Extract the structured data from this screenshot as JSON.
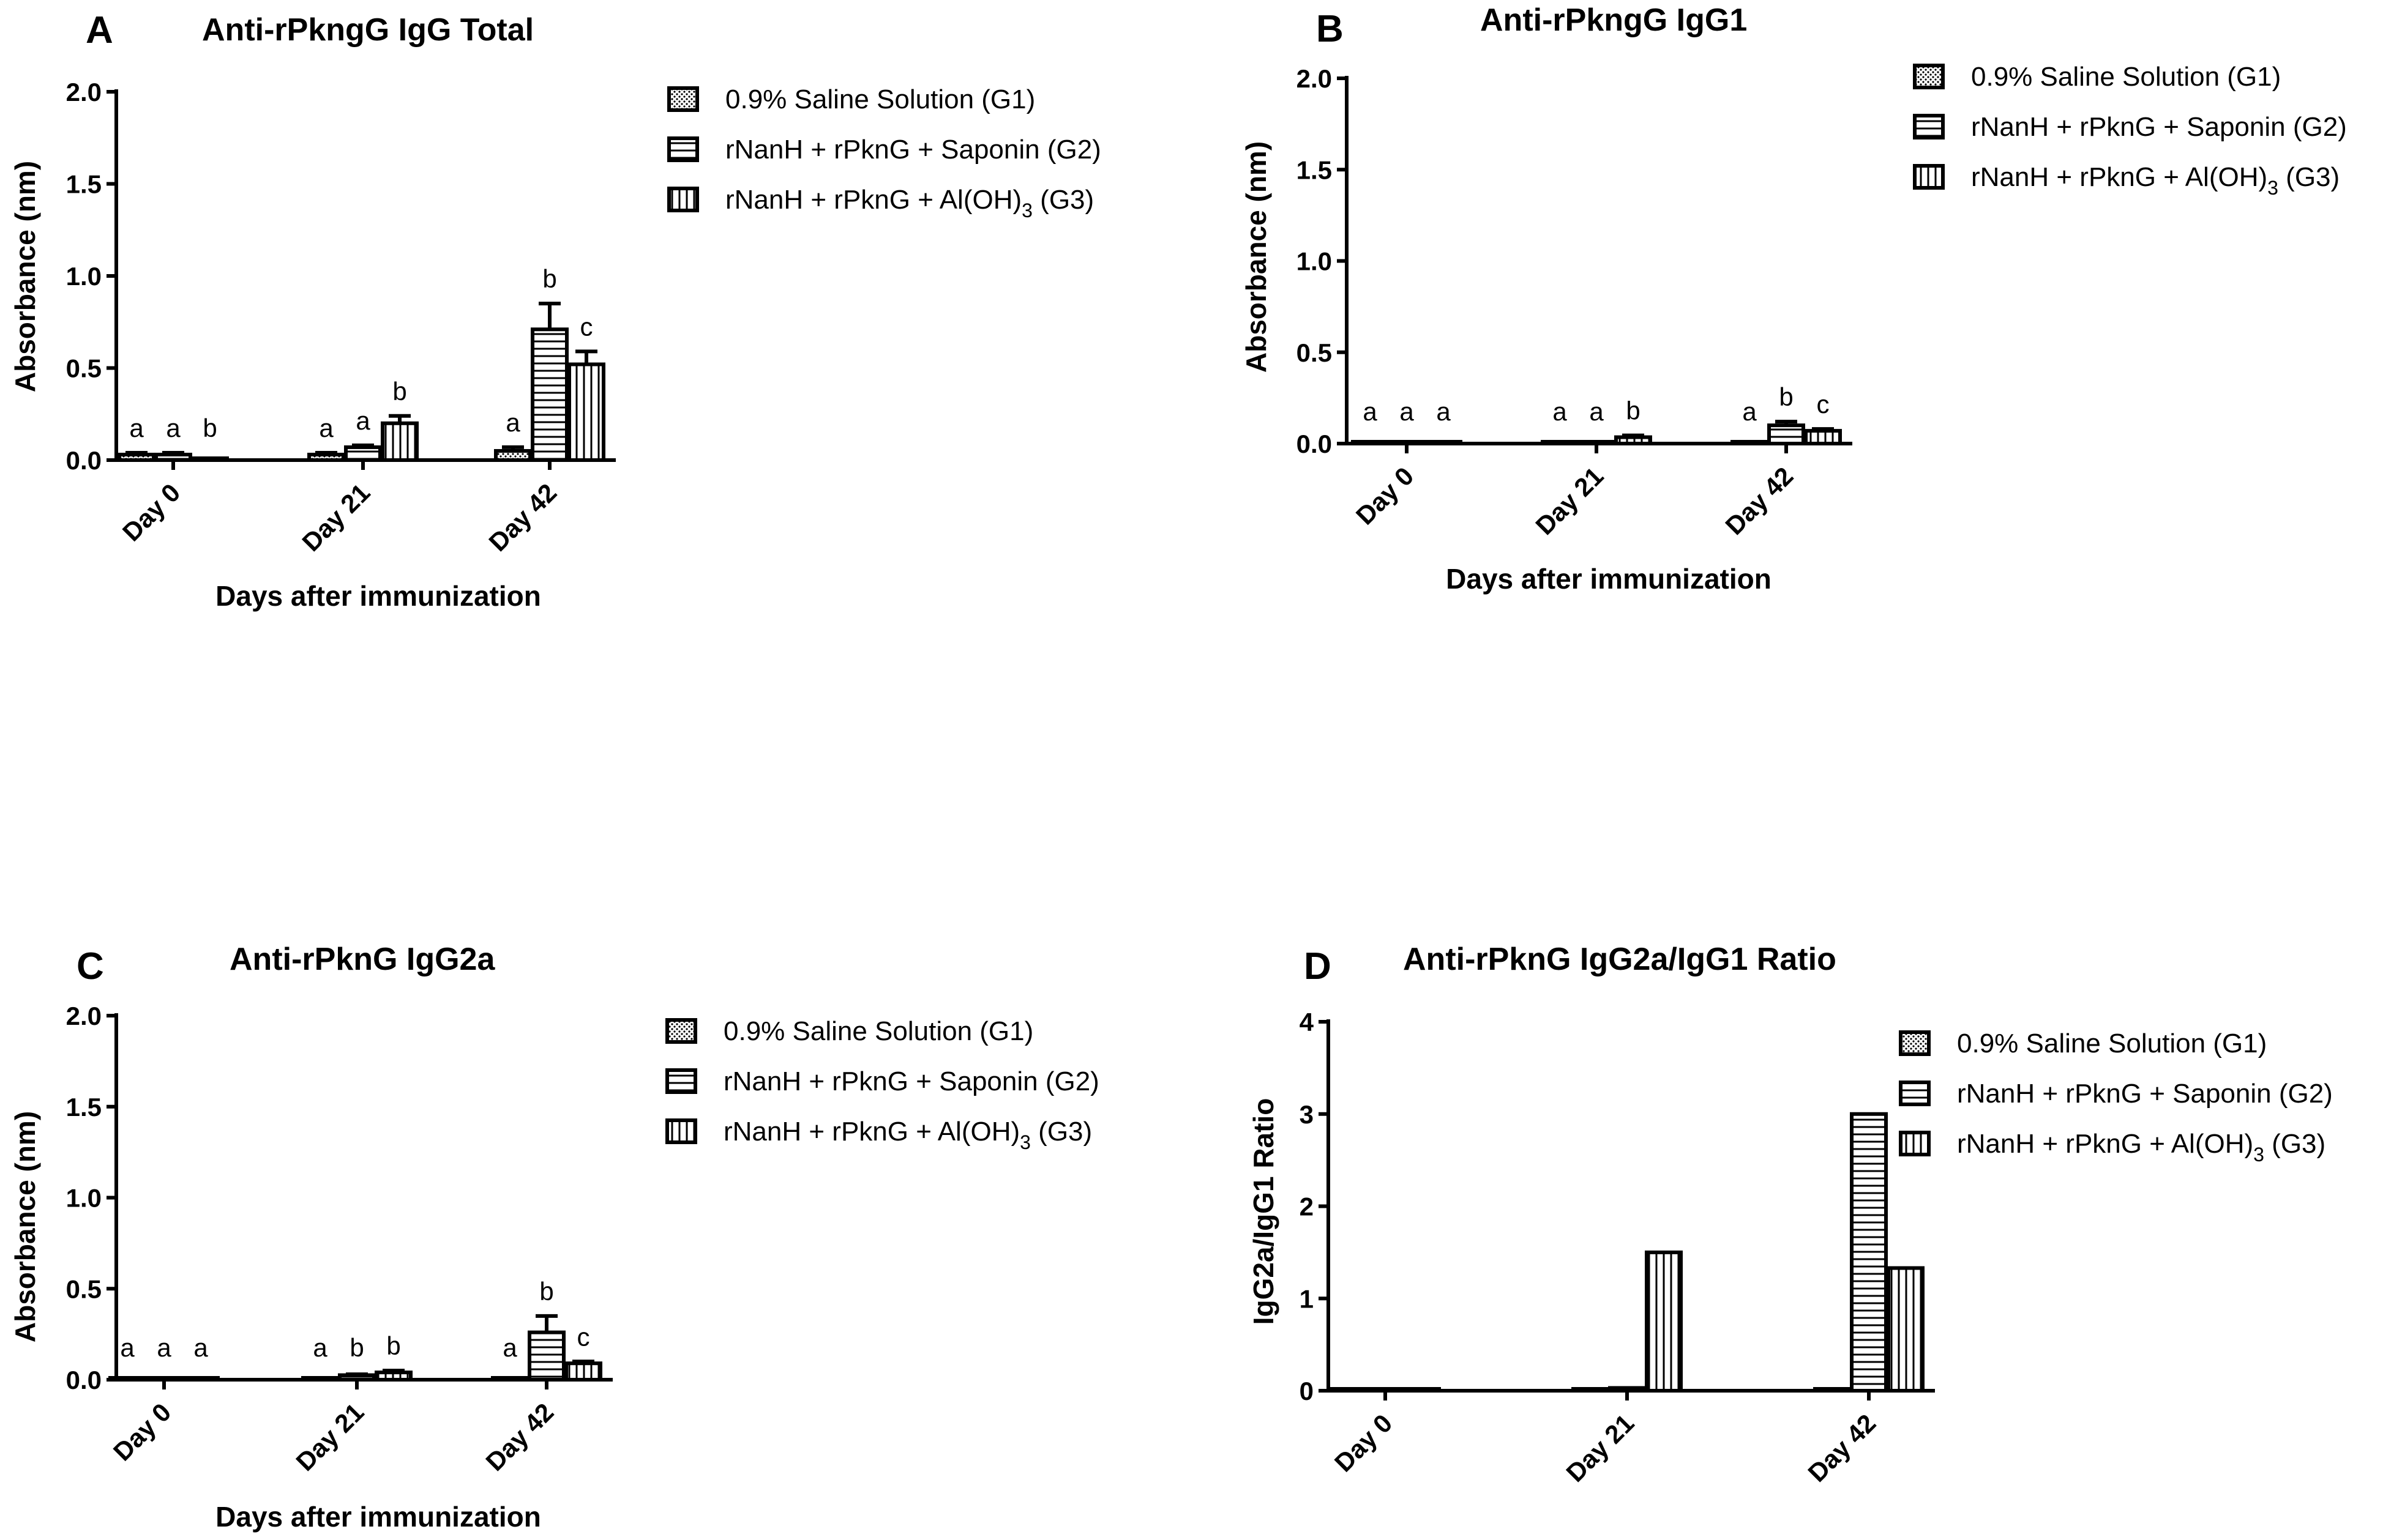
{
  "chart_data": [
    {
      "id": "A",
      "type": "bar",
      "panel_label": "A",
      "title": "Anti-rPkngG IgG Total",
      "xlabel": "Days after immunization",
      "ylabel": "Absorbance (nm)",
      "ylim": [
        0,
        2.0
      ],
      "yticks": [
        "0.0",
        "0.5",
        "1.0",
        "1.5",
        "2.0"
      ],
      "ytick_values": [
        0,
        0.5,
        1.0,
        1.5,
        2.0
      ],
      "categories": [
        "Day 0",
        "Day 21",
        "Day 42"
      ],
      "series": [
        {
          "name": "0.9% Saline Solution (G1)",
          "pattern": "dots",
          "values": [
            0.03,
            0.03,
            0.05
          ],
          "errors": [
            0.01,
            0.01,
            0.02
          ],
          "letters": [
            "a",
            "a",
            "a"
          ]
        },
        {
          "name": "rNanH + rPknG + Saponin (G2)",
          "pattern": "hlines",
          "values": [
            0.03,
            0.07,
            0.71
          ],
          "errors": [
            0.01,
            0.01,
            0.14
          ],
          "letters": [
            "a",
            "a",
            "b"
          ]
        },
        {
          "name": "rNanH + rPknG + Al(OH)3 (G3)",
          "pattern": "vlines",
          "values": [
            0.01,
            0.2,
            0.52
          ],
          "errors": [
            0.0,
            0.04,
            0.07
          ],
          "letters": [
            "b",
            "b",
            "c"
          ]
        }
      ],
      "legend": {
        "items": [
          {
            "text": "0.9% Saline Solution (G1)",
            "main": "0.9% Saline Solution (G1)",
            "sub": "",
            "tail": ""
          },
          {
            "text": "rNanH + rPknG + Saponin (G2)",
            "main": "rNanH + rPknG + Saponin (G2)",
            "sub": "",
            "tail": ""
          },
          {
            "text": "rNanH + rPknG + Al(OH)3 (G3)",
            "main": "rNanH + rPknG + Al(OH)",
            "sub": "3",
            "tail": " (G3)"
          }
        ]
      }
    },
    {
      "id": "B",
      "type": "bar",
      "panel_label": "B",
      "title": "Anti-rPkngG IgG1",
      "xlabel": "Days after immunization",
      "ylabel": "Absorbance (nm)",
      "ylim": [
        0,
        2.0
      ],
      "yticks": [
        "0.0",
        "0.5",
        "1.0",
        "1.5",
        "2.0"
      ],
      "ytick_values": [
        0,
        0.5,
        1.0,
        1.5,
        2.0
      ],
      "categories": [
        "Day 0",
        "Day 21",
        "Day 42"
      ],
      "series": [
        {
          "name": "0.9% Saline Solution (G1)",
          "pattern": "dots",
          "values": [
            0.01,
            0.0,
            0.0
          ],
          "errors": [
            0.0,
            0.0,
            0.0
          ],
          "letters": [
            "a",
            "a",
            "a"
          ]
        },
        {
          "name": "rNanH + rPknG + Saponin (G2)",
          "pattern": "hlines",
          "values": [
            0.0,
            0.0,
            0.1
          ],
          "errors": [
            0.0,
            0.0,
            0.02
          ],
          "letters": [
            "a",
            "a",
            "b"
          ]
        },
        {
          "name": "rNanH + rPknG + Al(OH)3 (G3)",
          "pattern": "vlines",
          "values": [
            0.005,
            0.035,
            0.07
          ],
          "errors": [
            0.0,
            0.01,
            0.01
          ],
          "letters": [
            "a",
            "b",
            "c"
          ]
        }
      ],
      "legend": {
        "items": [
          {
            "text": "0.9% Saline Solution (G1)",
            "main": "0.9% Saline Solution (G1)",
            "sub": "",
            "tail": ""
          },
          {
            "text": "rNanH + rPknG + Saponin (G2)",
            "main": "rNanH + rPknG + Saponin (G2)",
            "sub": "",
            "tail": ""
          },
          {
            "text": "rNanH + rPknG + Al(OH)3 (G3)",
            "main": "rNanH + rPknG + Al(OH)",
            "sub": "3",
            "tail": " (G3)"
          }
        ]
      }
    },
    {
      "id": "C",
      "type": "bar",
      "panel_label": "C",
      "title": "Anti-rPknG IgG2a",
      "xlabel": "Days after immunization",
      "ylabel": "Absorbance (nm)",
      "ylim": [
        0,
        2.0
      ],
      "yticks": [
        "0.0",
        "0.5",
        "1.0",
        "1.5",
        "2.0"
      ],
      "ytick_values": [
        0,
        0.5,
        1.0,
        1.5,
        2.0
      ],
      "categories": [
        "Day 0",
        "Day 21",
        "Day 42"
      ],
      "series": [
        {
          "name": "0.9% Saline Solution (G1)",
          "pattern": "dots",
          "values": [
            0.005,
            0.0,
            0.0
          ],
          "errors": [
            0.0,
            0.0,
            0.0
          ],
          "letters": [
            "a",
            "a",
            "a"
          ]
        },
        {
          "name": "rNanH + rPknG + Saponin (G2)",
          "pattern": "hlines",
          "values": [
            0.0,
            0.025,
            0.26
          ],
          "errors": [
            0.0,
            0.005,
            0.09
          ],
          "letters": [
            "a",
            "b",
            "b"
          ]
        },
        {
          "name": "rNanH + rPknG + Al(OH)3 (G3)",
          "pattern": "vlines",
          "values": [
            0.01,
            0.04,
            0.09
          ],
          "errors": [
            0.0,
            0.01,
            0.01
          ],
          "letters": [
            "a",
            "b",
            "c"
          ]
        }
      ],
      "legend": {
        "items": [
          {
            "text": "0.9% Saline Solution (G1)",
            "main": "0.9% Saline Solution (G1)",
            "sub": "",
            "tail": ""
          },
          {
            "text": "rNanH + rPknG + Saponin (G2)",
            "main": "rNanH + rPknG + Saponin (G2)",
            "sub": "",
            "tail": ""
          },
          {
            "text": "rNanH + rPknG +  Al(OH)3 (G3)",
            "main": "rNanH + rPknG +  Al(OH)",
            "sub": "3",
            "tail": " (G3)"
          }
        ]
      }
    },
    {
      "id": "D",
      "type": "bar",
      "panel_label": "D",
      "title": "Anti-rPknG IgG2a/IgG1 Ratio",
      "xlabel": "",
      "ylabel": "IgG2a/IgG1 Ratio",
      "ylim": [
        0,
        4
      ],
      "yticks": [
        "0",
        "1",
        "2",
        "3",
        "4"
      ],
      "ytick_values": [
        0,
        1,
        2,
        3,
        4
      ],
      "categories": [
        "Day 0",
        "Day 21",
        "Day 42"
      ],
      "series": [
        {
          "name": "0.9% Saline Solution (G1)",
          "pattern": "dots",
          "values": [
            0,
            0,
            0
          ],
          "errors": [
            0,
            0,
            0
          ],
          "letters": [
            "",
            "",
            ""
          ]
        },
        {
          "name": "rNanH + rPknG + Saponin (G2)",
          "pattern": "hlines",
          "values": [
            0,
            0.03,
            3.0
          ],
          "errors": [
            0,
            0,
            0
          ],
          "letters": [
            "",
            "",
            ""
          ]
        },
        {
          "name": "rNanH + rPknG + Al(OH)3 (G3)",
          "pattern": "vlines",
          "values": [
            0,
            1.5,
            1.33
          ],
          "errors": [
            0,
            0,
            0
          ],
          "letters": [
            "",
            "",
            ""
          ]
        }
      ],
      "legend": {
        "items": [
          {
            "text": "0.9% Saline Solution (G1)",
            "main": "0.9% Saline Solution (G1)",
            "sub": "",
            "tail": ""
          },
          {
            "text": "rNanH + rPknG + Saponin (G2)",
            "main": "rNanH + rPknG + Saponin (G2)",
            "sub": "",
            "tail": ""
          },
          {
            "text": "rNanH + rPknG + Al(OH)3 (G3)",
            "main": "rNanH + rPknG + Al(OH)",
            "sub": "3",
            "tail": " (G3)"
          }
        ]
      }
    }
  ]
}
